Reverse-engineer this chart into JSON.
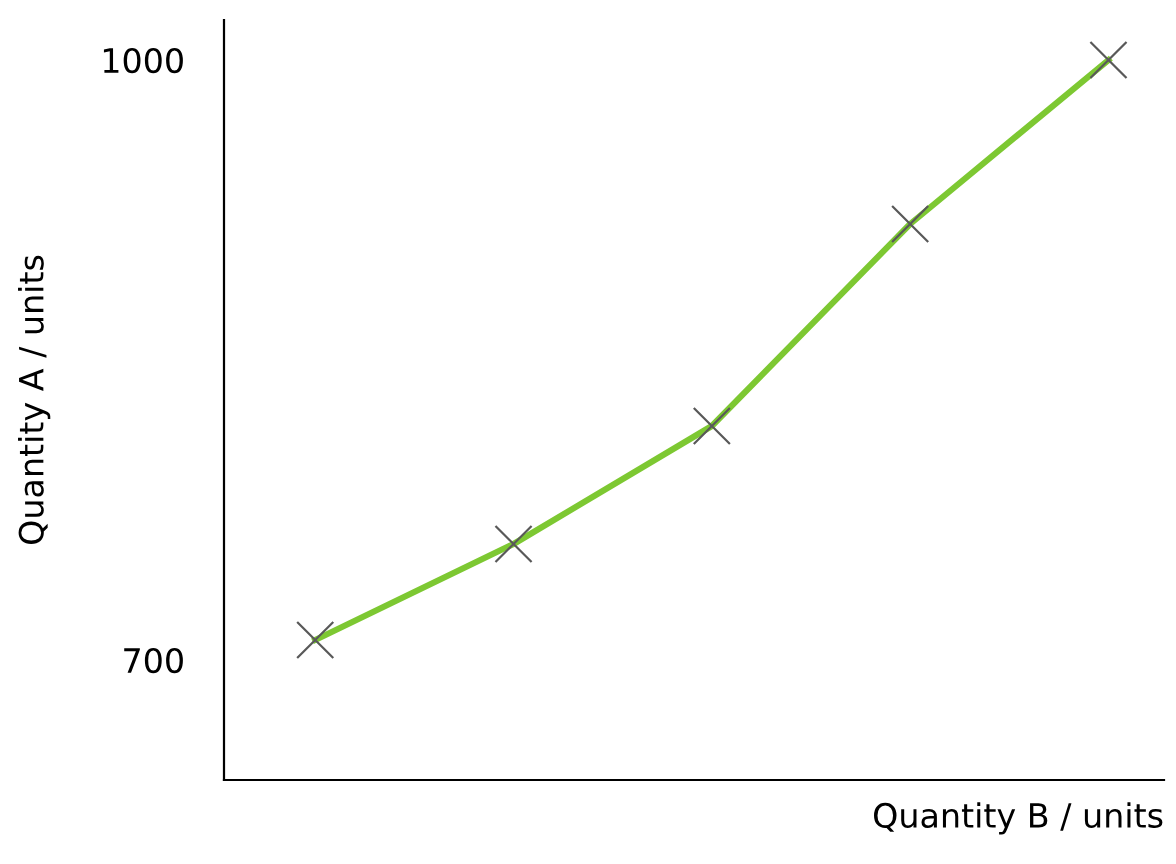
{
  "chart_data": {
    "type": "line",
    "xlabel": "Quantity B / units",
    "ylabel": "Quantity A / units",
    "categories": [
      null,
      null,
      null,
      null,
      null
    ],
    "ylim": [
      640,
      1020
    ],
    "yticks": [
      700,
      1000
    ],
    "tick_labels": "y",
    "marker": "cross",
    "series": [
      {
        "color": "#7dc832",
        "values": [
          710,
          758,
          817,
          918,
          1000
        ]
      }
    ]
  }
}
